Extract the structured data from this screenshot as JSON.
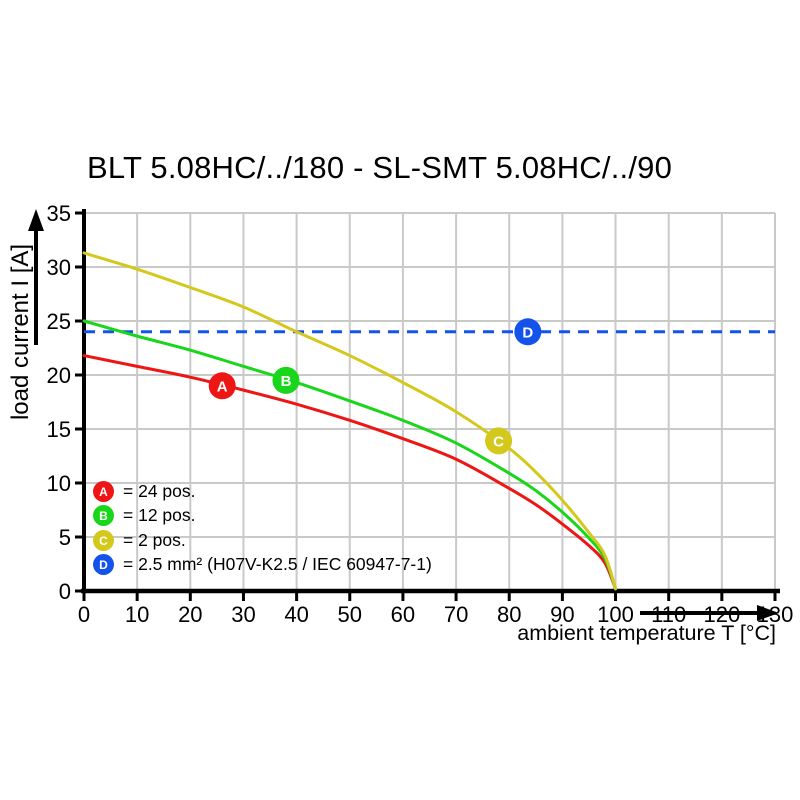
{
  "title": "BLT 5.08HC/../180 - SL-SMT 5.08HC/../90",
  "axes": {
    "y_label": "load current I [A]",
    "x_label": "ambient temperature T [°C]",
    "x_ticks": [
      0,
      10,
      20,
      30,
      40,
      50,
      60,
      70,
      80,
      90,
      100,
      110,
      120,
      130
    ],
    "y_ticks": [
      0,
      5,
      10,
      15,
      20,
      25,
      30,
      35
    ]
  },
  "legend": {
    "items": [
      {
        "letter": "A",
        "label": "= 24 pos.",
        "color": "#ee1515"
      },
      {
        "letter": "B",
        "label": "= 12 pos.",
        "color": "#1ad61a"
      },
      {
        "letter": "C",
        "label": "= 2 pos.",
        "color": "#d4c81c"
      },
      {
        "letter": "D",
        "label": "= 2.5 mm² (H07V-K2.5 / IEC 60947-7-1)",
        "color": "#1453ea"
      }
    ]
  },
  "colors": {
    "red": "#ee1515",
    "green": "#1ad61a",
    "yellow": "#d4c81c",
    "blue": "#1453ea",
    "grid": "#c9c9c9",
    "axis": "#000000",
    "marker_text": "#ffffff"
  },
  "chart_data": {
    "type": "line",
    "title": "BLT 5.08HC/../180 - SL-SMT 5.08HC/../90",
    "xlabel": "ambient temperature T [°C]",
    "ylabel": "load current I [A]",
    "xlim": [
      0,
      130
    ],
    "ylim": [
      0,
      35
    ],
    "grid": true,
    "legend_position": "inside-bottom-left",
    "series": [
      {
        "name": "A = 24 pos.",
        "color": "#ee1515",
        "style": "solid",
        "points": [
          [
            0,
            21.8
          ],
          [
            10,
            20.8
          ],
          [
            20,
            19.8
          ],
          [
            30,
            18.6
          ],
          [
            40,
            17.3
          ],
          [
            50,
            15.8
          ],
          [
            60,
            14.1
          ],
          [
            70,
            12.2
          ],
          [
            80,
            9.5
          ],
          [
            85,
            8.0
          ],
          [
            90,
            6.2
          ],
          [
            95,
            4.2
          ],
          [
            98,
            2.6
          ],
          [
            100,
            0.2
          ]
        ]
      },
      {
        "name": "B = 12 pos.",
        "color": "#1ad61a",
        "style": "solid",
        "points": [
          [
            0,
            25.0
          ],
          [
            10,
            23.6
          ],
          [
            20,
            22.3
          ],
          [
            30,
            20.8
          ],
          [
            40,
            19.3
          ],
          [
            50,
            17.6
          ],
          [
            60,
            15.8
          ],
          [
            70,
            13.7
          ],
          [
            80,
            10.9
          ],
          [
            85,
            9.3
          ],
          [
            90,
            7.3
          ],
          [
            95,
            4.9
          ],
          [
            98,
            3.0
          ],
          [
            100,
            0.2
          ]
        ]
      },
      {
        "name": "C = 2 pos.",
        "color": "#d4c81c",
        "style": "solid",
        "points": [
          [
            0,
            31.3
          ],
          [
            10,
            29.8
          ],
          [
            20,
            28.1
          ],
          [
            30,
            26.3
          ],
          [
            40,
            24.0
          ],
          [
            50,
            21.8
          ],
          [
            60,
            19.3
          ],
          [
            70,
            16.6
          ],
          [
            80,
            13.2
          ],
          [
            85,
            11.0
          ],
          [
            90,
            8.4
          ],
          [
            95,
            5.4
          ],
          [
            98,
            3.3
          ],
          [
            100,
            0.2
          ]
        ]
      },
      {
        "name": "D = 2.5 mm² (H07V-K2.5 / IEC 60947-7-1)",
        "color": "#1453ea",
        "style": "dashed",
        "points": [
          [
            0,
            24
          ],
          [
            130,
            24
          ]
        ]
      }
    ],
    "markers": [
      {
        "letter": "A",
        "x": 26,
        "y": 19.0,
        "color": "#ee1515"
      },
      {
        "letter": "B",
        "x": 38,
        "y": 19.5,
        "color": "#1ad61a"
      },
      {
        "letter": "C",
        "x": 78,
        "y": 13.9,
        "color": "#d4c81c"
      },
      {
        "letter": "D",
        "x": 83.5,
        "y": 24.0,
        "color": "#1453ea"
      }
    ]
  }
}
